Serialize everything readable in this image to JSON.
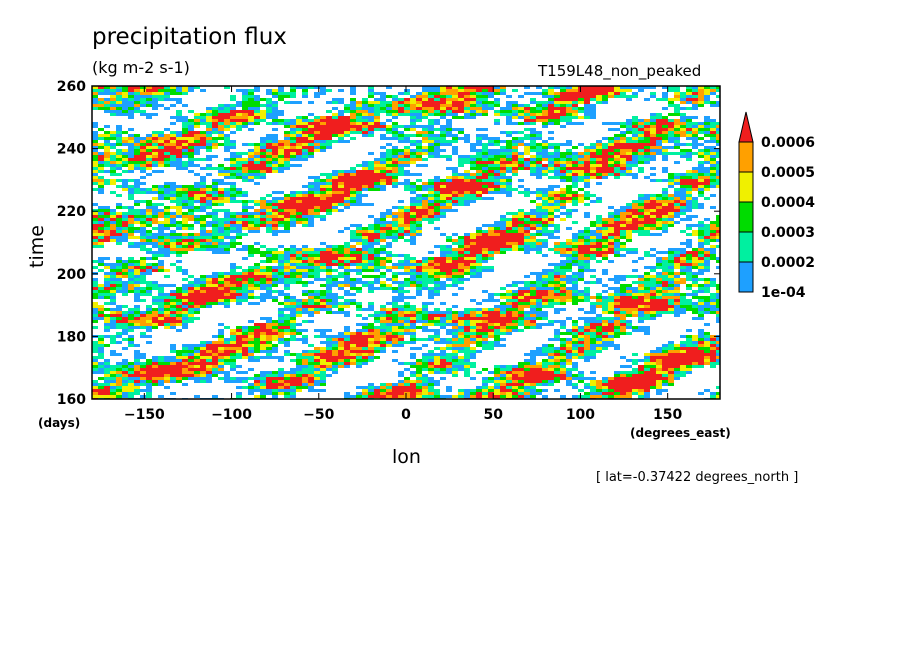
{
  "chart_data": {
    "type": "heatmap",
    "title": "precipitation flux",
    "units": "(kg m-2 s-1)",
    "subtitle": "T159L48_non_peaked",
    "xlabel": "lon",
    "ylabel": "time",
    "xunit": "(degrees_east)",
    "yunit": "(days)",
    "note": "[ lat=-0.37422 degrees_north ]",
    "xlim": [
      -180,
      180
    ],
    "ylim": [
      160,
      260
    ],
    "xticks": [
      -150,
      -100,
      -50,
      0,
      50,
      100,
      150
    ],
    "xtick_labels": [
      "−150",
      "−100",
      "−50",
      "0",
      "50",
      "100",
      "150"
    ],
    "yticks": [
      160,
      180,
      200,
      220,
      240,
      260
    ],
    "ytick_labels": [
      "160",
      "180",
      "200",
      "220",
      "240",
      "260"
    ],
    "colorbar": {
      "levels": [
        0.0001,
        0.0002,
        0.0003,
        0.0004,
        0.0005,
        0.0006
      ],
      "labels": [
        "1e-04",
        "0.0002",
        "0.0003",
        "0.0004",
        "0.0005",
        "0.0006"
      ],
      "colors": [
        "#1ea0ff",
        "#00f0a0",
        "#00dc00",
        "#f0f000",
        "#ffa000",
        "#f01e1e"
      ],
      "extend": "max"
    }
  }
}
